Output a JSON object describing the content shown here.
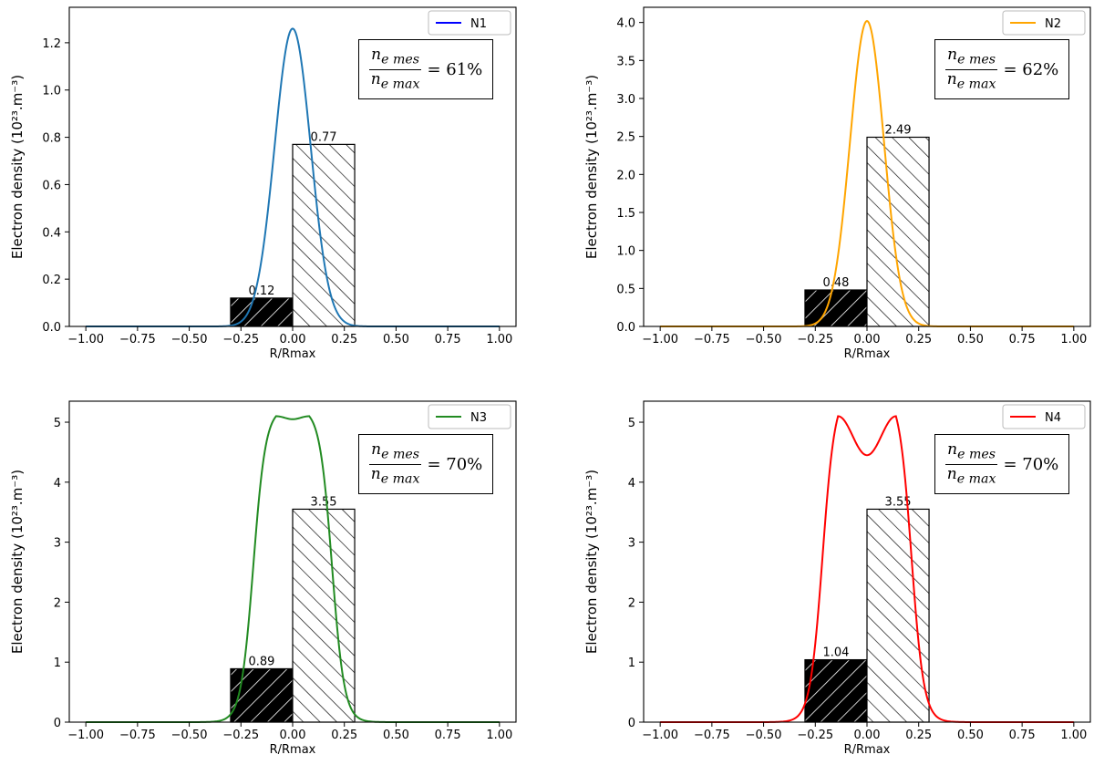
{
  "chart_data": [
    {
      "type": "line",
      "series": [
        {
          "name": "N1",
          "color": "#1f77b4",
          "legend_color": "#0000ff",
          "profile": {
            "kind": "gaussian",
            "peak": 1.26,
            "width": 0.087
          }
        }
      ],
      "bars": [
        {
          "x_start": -0.3,
          "x_end": 0.0,
          "value": 0.12,
          "label": "0.12",
          "fill": "black",
          "hatch": "white-diagonal"
        },
        {
          "x_start": 0.0,
          "x_end": 0.3,
          "value": 0.77,
          "label": "0.77",
          "fill": "white",
          "hatch": "black-diagonal"
        }
      ],
      "xlabel": "R/Rmax",
      "ylabel": "Electron density (10²³.m⁻³)",
      "xlim": [
        -1.08,
        1.08
      ],
      "ylim": [
        0,
        1.35
      ],
      "xticks": [
        -1.0,
        -0.75,
        -0.5,
        -0.25,
        0.0,
        0.25,
        0.5,
        0.75,
        1.0
      ],
      "xtick_labels": [
        "−1.00",
        "−0.75",
        "−0.50",
        "−0.25",
        "0.00",
        "0.25",
        "0.50",
        "0.75",
        "1.00"
      ],
      "yticks": [
        0.0,
        0.2,
        0.4,
        0.6,
        0.8,
        1.0,
        1.2
      ],
      "ytick_labels": [
        "0.0",
        "0.2",
        "0.4",
        "0.6",
        "0.8",
        "1.0",
        "1.2"
      ],
      "legend_position": "top-right",
      "annotation": {
        "numerator": "n",
        "numerator_sub": "e mes",
        "denominator": "n",
        "denominator_sub": "e max",
        "value": "= 61%"
      }
    },
    {
      "type": "line",
      "series": [
        {
          "name": "N2",
          "color": "#ffa500",
          "legend_color": "#ffa500",
          "profile": {
            "kind": "gaussian",
            "peak": 4.02,
            "width": 0.082
          }
        }
      ],
      "bars": [
        {
          "x_start": -0.3,
          "x_end": 0.0,
          "value": 0.48,
          "label": "0.48",
          "fill": "black",
          "hatch": "white-diagonal"
        },
        {
          "x_start": 0.0,
          "x_end": 0.3,
          "value": 2.49,
          "label": "2.49",
          "fill": "white",
          "hatch": "black-diagonal"
        }
      ],
      "xlabel": "R/Rmax",
      "ylabel": "Electron density (10²³.m⁻³)",
      "xlim": [
        -1.08,
        1.08
      ],
      "ylim": [
        0,
        4.2
      ],
      "xticks": [
        -1.0,
        -0.75,
        -0.5,
        -0.25,
        0.0,
        0.25,
        0.5,
        0.75,
        1.0
      ],
      "xtick_labels": [
        "−1.00",
        "−0.75",
        "−0.50",
        "−0.25",
        "0.00",
        "0.25",
        "0.50",
        "0.75",
        "1.00"
      ],
      "yticks": [
        0.0,
        0.5,
        1.0,
        1.5,
        2.0,
        2.5,
        3.0,
        3.5,
        4.0
      ],
      "ytick_labels": [
        "0.0",
        "0.5",
        "1.0",
        "1.5",
        "2.0",
        "2.5",
        "3.0",
        "3.5",
        "4.0"
      ],
      "legend_position": "top-right",
      "annotation": {
        "numerator": "n",
        "numerator_sub": "e mes",
        "denominator": "n",
        "denominator_sub": "e max",
        "value": "= 62%"
      }
    },
    {
      "type": "line",
      "series": [
        {
          "name": "N3",
          "color": "#228b22",
          "legend_color": "#228b22",
          "profile": {
            "kind": "double-peak",
            "peak": 5.1,
            "peak_positions": [
              -0.08,
              0.08
            ],
            "center_value": 5.05,
            "edge": 0.19
          }
        }
      ],
      "bars": [
        {
          "x_start": -0.3,
          "x_end": 0.0,
          "value": 0.89,
          "label": "0.89",
          "fill": "black",
          "hatch": "white-diagonal"
        },
        {
          "x_start": 0.0,
          "x_end": 0.3,
          "value": 3.55,
          "label": "3.55",
          "fill": "white",
          "hatch": "black-diagonal"
        }
      ],
      "xlabel": "R/Rmax",
      "ylabel": "Electron density (10²³.m⁻³)",
      "xlim": [
        -1.08,
        1.08
      ],
      "ylim": [
        0,
        5.35
      ],
      "xticks": [
        -1.0,
        -0.75,
        -0.5,
        -0.25,
        0.0,
        0.25,
        0.5,
        0.75,
        1.0
      ],
      "xtick_labels": [
        "−1.00",
        "−0.75",
        "−0.50",
        "−0.25",
        "0.00",
        "0.25",
        "0.50",
        "0.75",
        "1.00"
      ],
      "yticks": [
        0,
        1,
        2,
        3,
        4,
        5
      ],
      "ytick_labels": [
        "0",
        "1",
        "2",
        "3",
        "4",
        "5"
      ],
      "legend_position": "top-right",
      "annotation": {
        "numerator": "n",
        "numerator_sub": "e mes",
        "denominator": "n",
        "denominator_sub": "e max",
        "value": "= 70%"
      }
    },
    {
      "type": "line",
      "series": [
        {
          "name": "N4",
          "color": "#ff0000",
          "legend_color": "#ff0000",
          "profile": {
            "kind": "double-peak",
            "peak": 5.1,
            "peak_positions": [
              -0.14,
              0.14
            ],
            "center_value": 4.45,
            "edge": 0.215
          }
        }
      ],
      "bars": [
        {
          "x_start": -0.3,
          "x_end": 0.0,
          "value": 1.04,
          "label": "1.04",
          "fill": "black",
          "hatch": "white-diagonal"
        },
        {
          "x_start": 0.0,
          "x_end": 0.3,
          "value": 3.55,
          "label": "3.55",
          "fill": "white",
          "hatch": "black-diagonal"
        }
      ],
      "xlabel": "R/Rmax",
      "ylabel": "Electron density (10²³.m⁻³)",
      "xlim": [
        -1.08,
        1.08
      ],
      "ylim": [
        0,
        5.35
      ],
      "xticks": [
        -1.0,
        -0.75,
        -0.5,
        -0.25,
        0.0,
        0.25,
        0.5,
        0.75,
        1.0
      ],
      "xtick_labels": [
        "−1.00",
        "−0.75",
        "−0.50",
        "−0.25",
        "0.00",
        "0.25",
        "0.50",
        "0.75",
        "1.00"
      ],
      "yticks": [
        0,
        1,
        2,
        3,
        4,
        5
      ],
      "ytick_labels": [
        "0",
        "1",
        "2",
        "3",
        "4",
        "5"
      ],
      "legend_position": "top-right",
      "annotation": {
        "numerator": "n",
        "numerator_sub": "e mes",
        "denominator": "n",
        "denominator_sub": "e max",
        "value": "= 70%"
      }
    }
  ]
}
